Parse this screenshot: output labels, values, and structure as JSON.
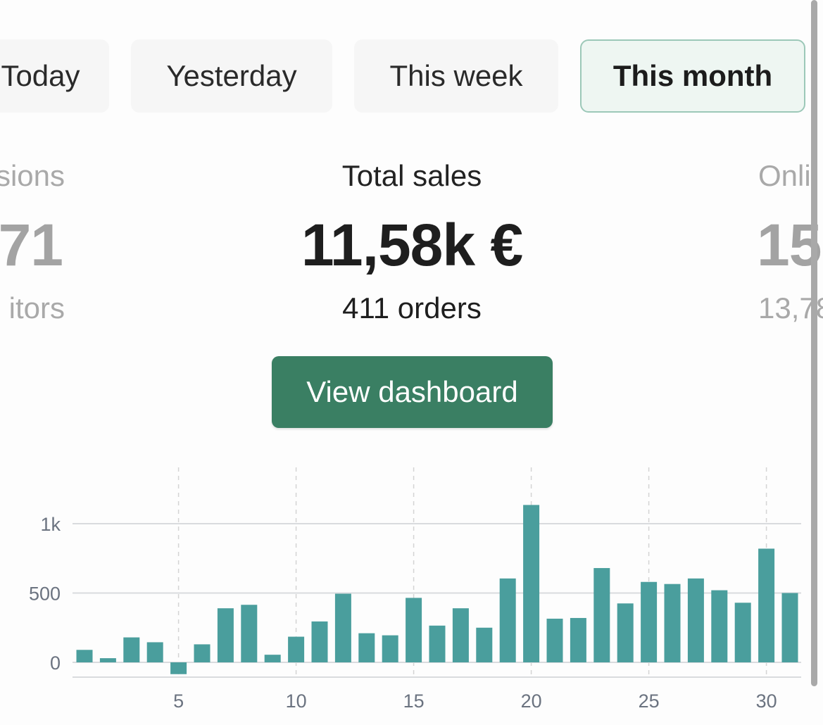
{
  "tabs": [
    {
      "label": "Today",
      "active": false
    },
    {
      "label": "Yesterday",
      "active": false
    },
    {
      "label": "This week",
      "active": false
    },
    {
      "label": "This month",
      "active": true
    }
  ],
  "stats": {
    "left": {
      "title": "sions",
      "value": "71",
      "sub": "itors"
    },
    "center": {
      "title": "Total sales",
      "value": "11,58k €",
      "sub": "411 orders"
    },
    "right": {
      "title": "Onli",
      "value": "15",
      "sub": "13,78"
    }
  },
  "button": {
    "label": "View dashboard"
  },
  "colors": {
    "accent": "#3a7f63",
    "bar": "#4a9e9d",
    "tab_active_border": "#9cc8b8"
  },
  "chart_data": {
    "type": "bar",
    "x": [
      1,
      2,
      3,
      4,
      5,
      6,
      7,
      8,
      9,
      10,
      11,
      12,
      13,
      14,
      15,
      16,
      17,
      18,
      19,
      20,
      21,
      22,
      23,
      24,
      25,
      26,
      27,
      28,
      29,
      30,
      31
    ],
    "values": [
      90,
      30,
      180,
      145,
      -85,
      130,
      390,
      415,
      55,
      185,
      295,
      495,
      210,
      195,
      465,
      265,
      390,
      250,
      605,
      1135,
      315,
      320,
      680,
      425,
      580,
      565,
      605,
      520,
      430,
      820,
      500
    ],
    "x_ticks": [
      5,
      10,
      15,
      20,
      25,
      30
    ],
    "x_tick_labels": [
      "5",
      "10",
      "15",
      "20",
      "25",
      "30"
    ],
    "y_ticks": [
      0,
      500,
      1000
    ],
    "y_tick_labels": [
      "0",
      "500",
      "1k"
    ],
    "ylim": [
      -100,
      1400
    ],
    "grid": "horizontal solid at y ticks, vertical dashed at x ticks"
  }
}
